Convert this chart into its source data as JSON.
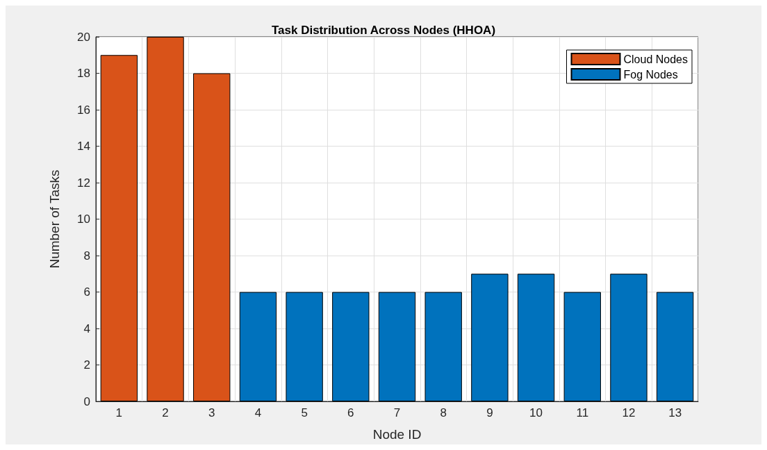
{
  "chart_data": {
    "type": "bar",
    "title": "Task Distribution Across Nodes (HHOA)",
    "xlabel": "Node ID",
    "ylabel": "Number of Tasks",
    "categories": [
      "1",
      "2",
      "3",
      "4",
      "5",
      "6",
      "7",
      "8",
      "9",
      "10",
      "11",
      "12",
      "13"
    ],
    "series": [
      {
        "name": "Cloud Nodes",
        "color": "#d95319",
        "values": [
          19,
          20,
          18,
          null,
          null,
          null,
          null,
          null,
          null,
          null,
          null,
          null,
          null
        ]
      },
      {
        "name": "Fog Nodes",
        "color": "#0072bd",
        "values": [
          null,
          null,
          null,
          6,
          6,
          6,
          6,
          6,
          7,
          7,
          6,
          7,
          6
        ]
      }
    ],
    "ylim": [
      0,
      20
    ],
    "yticks": [
      0,
      2,
      4,
      6,
      8,
      10,
      12,
      14,
      16,
      18,
      20
    ],
    "grid": true,
    "legend": "top right"
  }
}
